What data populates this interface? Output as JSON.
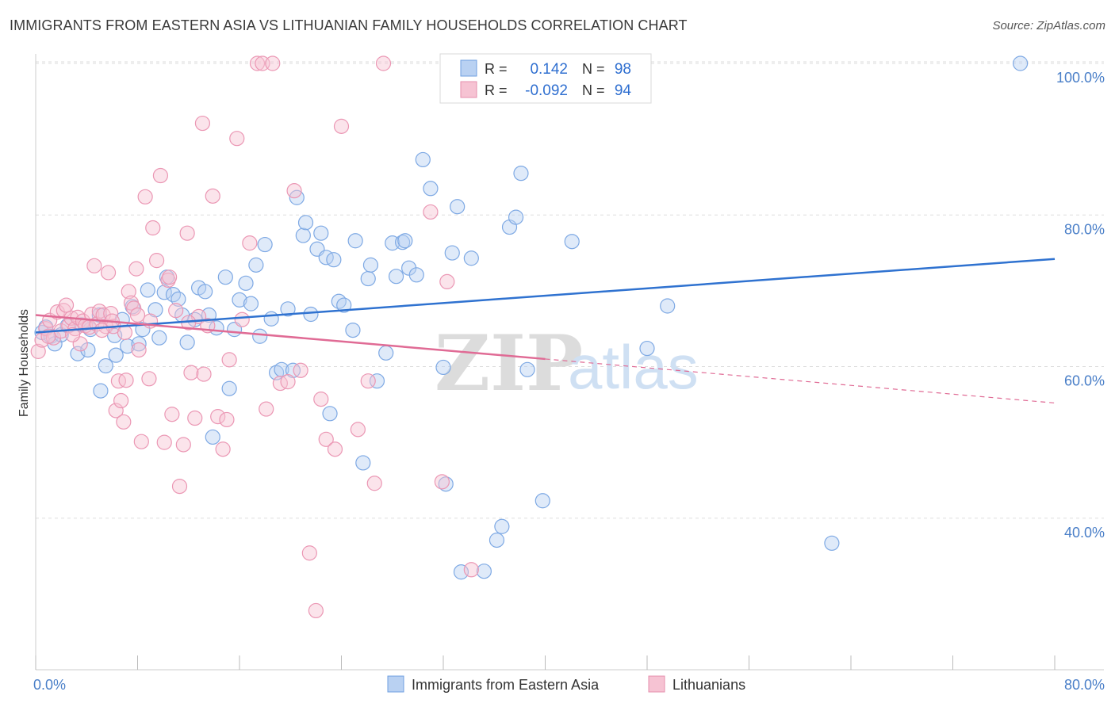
{
  "title": "IMMIGRANTS FROM EASTERN ASIA VS LITHUANIAN FAMILY HOUSEHOLDS CORRELATION CHART",
  "source": "Source: ZipAtlas.com",
  "watermark": {
    "zip": "ZIP",
    "atlas": "atlas"
  },
  "colors": {
    "blue": "#2f72d0",
    "blue_fill": "#b9d1f2",
    "pink": "#e06b95",
    "pink_fill": "#f6c3d3",
    "grid": "#dddddd",
    "tick": "#4a7fc8"
  },
  "legend_top": {
    "rows": [
      {
        "r_label": "R =",
        "r_value": "0.142",
        "n_label": "N =",
        "n_value": "98"
      },
      {
        "r_label": "R =",
        "r_value": "-0.092",
        "n_label": "N =",
        "n_value": "94"
      }
    ]
  },
  "legend_bottom": [
    "Immigrants from Eastern Asia",
    "Lithuanians"
  ],
  "chart_data": {
    "type": "scatter",
    "title": "IMMIGRANTS FROM EASTERN ASIA VS LITHUANIAN FAMILY HOUSEHOLDS CORRELATION CHART",
    "xlabel": "",
    "ylabel": "Family Households",
    "xlim": [
      0,
      80
    ],
    "ylim": [
      20,
      102
    ],
    "x_tick_labels": [
      "0.0%",
      "80.0%"
    ],
    "y_ticks": [
      40,
      60,
      80,
      100
    ],
    "y_tick_labels": [
      "40.0%",
      "60.0%",
      "80.0%",
      "100.0%"
    ],
    "grid": true,
    "legend_position": "bottom",
    "series": [
      {
        "name": "Immigrants from Eastern Asia",
        "r": 0.142,
        "n": 98,
        "trend": {
          "x0": 0,
          "y0": 64.5,
          "x1": 80,
          "y1": 74.2
        },
        "points": [
          [
            0.5,
            64.5
          ],
          [
            0.8,
            65.2
          ],
          [
            1.2,
            64.0
          ],
          [
            1.5,
            63.0
          ],
          [
            2.0,
            64.2
          ],
          [
            2.5,
            65.4
          ],
          [
            3.3,
            61.7
          ],
          [
            3.6,
            65.5
          ],
          [
            4.1,
            62.2
          ],
          [
            4.3,
            64.9
          ],
          [
            5.0,
            66.8
          ],
          [
            5.1,
            56.8
          ],
          [
            5.5,
            60.1
          ],
          [
            6.2,
            64.1
          ],
          [
            6.3,
            61.5
          ],
          [
            6.8,
            66.2
          ],
          [
            7.2,
            62.7
          ],
          [
            7.6,
            67.9
          ],
          [
            8.1,
            63.0
          ],
          [
            8.4,
            64.9
          ],
          [
            8.8,
            70.1
          ],
          [
            9.4,
            67.5
          ],
          [
            9.7,
            63.8
          ],
          [
            10.1,
            69.8
          ],
          [
            10.3,
            71.8
          ],
          [
            10.8,
            69.5
          ],
          [
            11.2,
            68.9
          ],
          [
            11.5,
            66.8
          ],
          [
            11.9,
            63.2
          ],
          [
            12.5,
            66.2
          ],
          [
            12.8,
            70.4
          ],
          [
            13.3,
            69.9
          ],
          [
            13.6,
            66.8
          ],
          [
            13.9,
            50.7
          ],
          [
            14.2,
            65.1
          ],
          [
            14.9,
            71.8
          ],
          [
            15.2,
            57.1
          ],
          [
            15.6,
            64.9
          ],
          [
            16.0,
            68.8
          ],
          [
            16.5,
            71.0
          ],
          [
            16.9,
            68.3
          ],
          [
            17.3,
            73.4
          ],
          [
            17.6,
            64.0
          ],
          [
            18.0,
            76.1
          ],
          [
            18.5,
            66.3
          ],
          [
            18.9,
            59.2
          ],
          [
            19.3,
            59.6
          ],
          [
            19.8,
            67.6
          ],
          [
            20.2,
            59.5
          ],
          [
            20.5,
            82.3
          ],
          [
            21.0,
            77.3
          ],
          [
            21.2,
            79.0
          ],
          [
            21.6,
            66.9
          ],
          [
            22.1,
            75.5
          ],
          [
            22.4,
            77.6
          ],
          [
            22.8,
            74.4
          ],
          [
            23.1,
            53.8
          ],
          [
            23.4,
            74.1
          ],
          [
            23.8,
            68.6
          ],
          [
            24.2,
            68.1
          ],
          [
            24.9,
            64.8
          ],
          [
            25.1,
            76.6
          ],
          [
            25.7,
            47.3
          ],
          [
            26.1,
            71.6
          ],
          [
            26.3,
            73.4
          ],
          [
            26.8,
            58.1
          ],
          [
            27.5,
            61.8
          ],
          [
            28.0,
            76.3
          ],
          [
            28.3,
            71.9
          ],
          [
            28.8,
            76.4
          ],
          [
            29.0,
            76.6
          ],
          [
            29.3,
            73.0
          ],
          [
            29.9,
            72.1
          ],
          [
            30.4,
            87.3
          ],
          [
            31.0,
            83.5
          ],
          [
            32.0,
            59.9
          ],
          [
            32.2,
            44.5
          ],
          [
            32.7,
            75.0
          ],
          [
            33.1,
            81.1
          ],
          [
            33.4,
            32.9
          ],
          [
            34.2,
            74.3
          ],
          [
            35.2,
            33.0
          ],
          [
            36.2,
            37.1
          ],
          [
            36.6,
            38.9
          ],
          [
            37.2,
            78.4
          ],
          [
            37.7,
            79.7
          ],
          [
            38.1,
            85.5
          ],
          [
            38.6,
            59.6
          ],
          [
            39.8,
            42.3
          ],
          [
            42.1,
            76.5
          ],
          [
            48.0,
            62.4
          ],
          [
            49.6,
            68.0
          ],
          [
            62.5,
            36.7
          ],
          [
            77.3,
            100.0
          ]
        ]
      },
      {
        "name": "Lithuanians",
        "r": -0.092,
        "n": 94,
        "trend": {
          "x0": 0,
          "y0": 66.8,
          "x1": 40,
          "y1": 61.0
        },
        "trend_dashed": {
          "x0": 40,
          "y0": 61.0,
          "x1": 80,
          "y1": 55.2
        },
        "points": [
          [
            0.2,
            62.0
          ],
          [
            0.5,
            63.5
          ],
          [
            0.8,
            65.0
          ],
          [
            1.1,
            66.1
          ],
          [
            1.4,
            63.8
          ],
          [
            1.7,
            67.2
          ],
          [
            2.0,
            64.7
          ],
          [
            2.2,
            67.4
          ],
          [
            2.4,
            68.1
          ],
          [
            2.6,
            65.4
          ],
          [
            2.8,
            66.4
          ],
          [
            3.1,
            65.0
          ],
          [
            3.3,
            66.5
          ],
          [
            3.7,
            66.0
          ],
          [
            3.9,
            65.4
          ],
          [
            4.2,
            65.2
          ],
          [
            4.4,
            66.9
          ],
          [
            4.6,
            73.3
          ],
          [
            4.8,
            65.6
          ],
          [
            5.0,
            67.3
          ],
          [
            5.3,
            66.8
          ],
          [
            5.5,
            65.3
          ],
          [
            5.7,
            72.4
          ],
          [
            5.9,
            67.0
          ],
          [
            6.1,
            65.3
          ],
          [
            6.3,
            54.2
          ],
          [
            6.5,
            58.1
          ],
          [
            6.7,
            55.5
          ],
          [
            6.9,
            52.7
          ],
          [
            7.1,
            58.2
          ],
          [
            7.3,
            69.9
          ],
          [
            7.5,
            68.4
          ],
          [
            7.7,
            67.7
          ],
          [
            7.9,
            72.9
          ],
          [
            8.1,
            62.2
          ],
          [
            8.3,
            50.1
          ],
          [
            8.6,
            82.4
          ],
          [
            8.9,
            58.4
          ],
          [
            9.2,
            78.3
          ],
          [
            9.5,
            74.0
          ],
          [
            9.8,
            85.2
          ],
          [
            10.1,
            50.0
          ],
          [
            10.4,
            71.4
          ],
          [
            10.7,
            53.7
          ],
          [
            11.0,
            67.4
          ],
          [
            11.3,
            44.2
          ],
          [
            11.6,
            49.7
          ],
          [
            11.9,
            77.6
          ],
          [
            12.2,
            59.2
          ],
          [
            12.5,
            53.2
          ],
          [
            12.8,
            66.6
          ],
          [
            13.1,
            92.1
          ],
          [
            13.5,
            65.4
          ],
          [
            13.9,
            82.5
          ],
          [
            14.3,
            53.4
          ],
          [
            14.7,
            49.1
          ],
          [
            15.2,
            60.9
          ],
          [
            15.8,
            90.1
          ],
          [
            16.2,
            66.2
          ],
          [
            16.8,
            76.3
          ],
          [
            17.4,
            100.0
          ],
          [
            17.8,
            100.0
          ],
          [
            18.1,
            54.4
          ],
          [
            18.6,
            100.0
          ],
          [
            19.2,
            57.8
          ],
          [
            19.8,
            58.0
          ],
          [
            20.3,
            83.2
          ],
          [
            20.8,
            59.5
          ],
          [
            21.5,
            35.4
          ],
          [
            22.0,
            27.8
          ],
          [
            22.4,
            55.7
          ],
          [
            22.8,
            50.4
          ],
          [
            23.5,
            49.1
          ],
          [
            24.0,
            91.7
          ],
          [
            25.3,
            51.7
          ],
          [
            26.1,
            58.1
          ],
          [
            26.6,
            44.6
          ],
          [
            27.3,
            100.0
          ],
          [
            31.0,
            80.4
          ],
          [
            31.9,
            44.8
          ],
          [
            32.3,
            71.2
          ],
          [
            34.2,
            33.2
          ],
          [
            9.0,
            66.0
          ],
          [
            7.0,
            64.5
          ],
          [
            3.5,
            63.0
          ],
          [
            1.0,
            64.0
          ],
          [
            2.9,
            64.2
          ],
          [
            5.2,
            64.8
          ],
          [
            6.0,
            66.0
          ],
          [
            8.0,
            66.8
          ],
          [
            12.0,
            65.8
          ],
          [
            10.5,
            71.8
          ],
          [
            13.2,
            59.0
          ],
          [
            15.0,
            53.0
          ]
        ]
      }
    ]
  }
}
